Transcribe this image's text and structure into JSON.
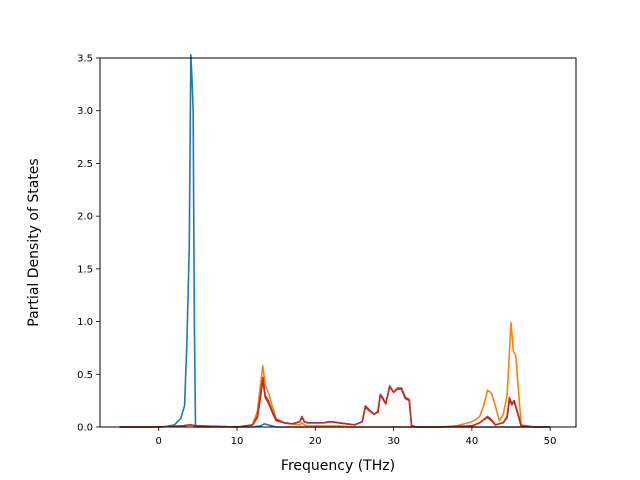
{
  "chart_data": {
    "type": "line",
    "title": "",
    "xlabel": "Frequency (THz)",
    "ylabel": "Partial Density of States",
    "xlim": [
      -7.5,
      53.3
    ],
    "ylim": [
      0,
      3.5
    ],
    "xticks": [
      0,
      10,
      20,
      30,
      40,
      50
    ],
    "xtick_labels": [
      "0",
      "10",
      "20",
      "30",
      "40",
      "50"
    ],
    "yticks": [
      0,
      0.5,
      1.0,
      1.5,
      2.0,
      2.5,
      3.0,
      3.5
    ],
    "ytick_labels": [
      "0.0",
      "0.5",
      "1.0",
      "1.5",
      "2.0",
      "2.5",
      "3.0",
      "3.5"
    ],
    "grid": false,
    "legend": "none",
    "series": [
      {
        "color": "#1f77b4",
        "x": [
          -5,
          0,
          1,
          2,
          2.8,
          3.3,
          3.6,
          3.9,
          4.1,
          4.25,
          4.4,
          4.55,
          4.7,
          5,
          10,
          12,
          13,
          13.5,
          14,
          14.5,
          15,
          20,
          30,
          40,
          50
        ],
        "y": [
          0,
          0,
          0.005,
          0.02,
          0.08,
          0.2,
          0.8,
          1.7,
          3.53,
          3.3,
          3.0,
          1.0,
          0.0,
          0,
          0,
          0,
          0.01,
          0.03,
          0.02,
          0.01,
          0,
          0,
          0,
          0,
          0
        ]
      },
      {
        "color": "#ff7f0e",
        "x": [
          -5,
          0,
          3,
          4,
          5,
          10,
          12,
          12.6,
          13.0,
          13.3,
          13.6,
          14.0,
          14.5,
          15,
          16,
          18,
          18.3,
          18.6,
          19,
          20,
          21,
          22,
          23,
          24,
          25,
          26,
          27,
          36,
          38,
          39,
          40,
          40.5,
          41,
          41.5,
          42,
          42.5,
          43,
          43.5,
          44,
          44.5,
          45,
          45.3,
          45.6,
          46,
          46.3,
          48,
          50
        ],
        "y": [
          0,
          0,
          0.01,
          0.02,
          0.01,
          0,
          0.02,
          0.15,
          0.4,
          0.58,
          0.4,
          0.33,
          0.2,
          0.08,
          0.04,
          0.02,
          0.04,
          0.02,
          0.01,
          0.01,
          0.01,
          0.01,
          0.01,
          0.005,
          0,
          0,
          0,
          0,
          0.01,
          0.03,
          0.05,
          0.07,
          0.1,
          0.2,
          0.35,
          0.32,
          0.2,
          0.06,
          0.12,
          0.3,
          0.99,
          0.72,
          0.68,
          0.3,
          0.02,
          0,
          0
        ]
      },
      {
        "color": "#d62728",
        "x": [
          -5,
          0,
          3,
          4,
          5,
          10,
          12,
          12.6,
          13.0,
          13.3,
          13.6,
          14.0,
          14.5,
          15,
          16,
          17,
          18,
          18.3,
          18.6,
          19,
          20,
          21,
          22,
          23,
          24,
          25,
          26,
          26.4,
          26.8,
          27.5,
          28,
          28.3,
          28.6,
          29,
          29.5,
          30,
          30.5,
          31,
          31.5,
          32,
          32.3,
          33,
          36,
          40,
          41,
          41.5,
          42,
          42.5,
          43,
          44,
          44.5,
          44.8,
          45.1,
          45.4,
          45.8,
          46.3,
          48,
          50
        ],
        "y": [
          0,
          0,
          0.01,
          0.02,
          0.01,
          0,
          0.02,
          0.1,
          0.3,
          0.47,
          0.3,
          0.25,
          0.15,
          0.07,
          0.04,
          0.03,
          0.05,
          0.1,
          0.05,
          0.04,
          0.04,
          0.04,
          0.05,
          0.04,
          0.03,
          0.02,
          0.05,
          0.2,
          0.17,
          0.12,
          0.15,
          0.31,
          0.28,
          0.22,
          0.39,
          0.33,
          0.37,
          0.37,
          0.28,
          0.26,
          0.01,
          0,
          0,
          0.01,
          0.04,
          0.07,
          0.1,
          0.07,
          0.02,
          0.04,
          0.1,
          0.28,
          0.22,
          0.25,
          0.15,
          0.01,
          0,
          0
        ]
      },
      {
        "color": "#b5302a",
        "x": [
          -5,
          0,
          3,
          4,
          5,
          10,
          12,
          12.6,
          13.0,
          13.3,
          13.6,
          14.0,
          14.5,
          15,
          16,
          17,
          18,
          18.3,
          18.6,
          19,
          20,
          21,
          22,
          23,
          24,
          25,
          26,
          26.4,
          26.8,
          27.5,
          28,
          28.3,
          28.6,
          29,
          29.5,
          30,
          30.5,
          31,
          31.5,
          32,
          32.3,
          33,
          36,
          40,
          41,
          41.5,
          42,
          42.5,
          43,
          44,
          44.5,
          44.8,
          45.1,
          45.4,
          45.8,
          46.3,
          48,
          50
        ],
        "y": [
          0,
          0,
          0.01,
          0.02,
          0.01,
          0,
          0.02,
          0.09,
          0.28,
          0.45,
          0.28,
          0.23,
          0.14,
          0.06,
          0.04,
          0.03,
          0.05,
          0.09,
          0.05,
          0.04,
          0.04,
          0.04,
          0.05,
          0.04,
          0.03,
          0.02,
          0.05,
          0.19,
          0.16,
          0.12,
          0.14,
          0.3,
          0.27,
          0.22,
          0.38,
          0.33,
          0.36,
          0.36,
          0.27,
          0.25,
          0.01,
          0,
          0,
          0.01,
          0.04,
          0.07,
          0.09,
          0.06,
          0.02,
          0.04,
          0.09,
          0.26,
          0.21,
          0.24,
          0.14,
          0.01,
          0,
          0
        ]
      }
    ]
  }
}
